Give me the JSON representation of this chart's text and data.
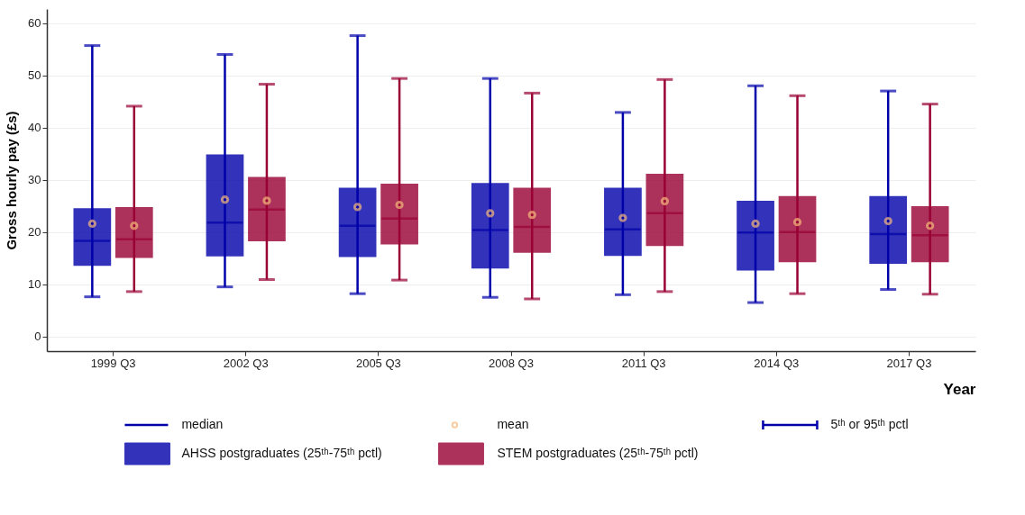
{
  "chart_data": {
    "type": "box",
    "xlabel": "Year",
    "ylabel": "Gross hourly pay (£s)",
    "categories": [
      "1999 Q3",
      "2002 Q3",
      "2005 Q3",
      "2008 Q3",
      "2011 Q3",
      "2014 Q3",
      "2017 Q3"
    ],
    "ylim": [
      -2.8,
      62.7
    ],
    "yticks": [
      0,
      10,
      20,
      30,
      40,
      50,
      60
    ],
    "grid": "y",
    "legend": "bottom",
    "annotations": [
      "median",
      "mean",
      "5ᵗʰ or 95ᵗʰ pctl"
    ],
    "series": [
      {
        "name": "AHSS postgraduates (25ᵗʰ-75ᵗʰ pctl)",
        "color": "#0000aa",
        "boxes": [
          {
            "low": 7.6,
            "q1": 13.7,
            "median": 18.3,
            "q3": 24.4,
            "high": 55.7,
            "mean": 21.6
          },
          {
            "low": 9.5,
            "q1": 15.5,
            "median": 21.8,
            "q3": 34.7,
            "high": 54.0,
            "mean": 26.2
          },
          {
            "low": 8.2,
            "q1": 15.4,
            "median": 21.2,
            "q3": 28.3,
            "high": 57.6,
            "mean": 24.8
          },
          {
            "low": 7.5,
            "q1": 13.2,
            "median": 20.4,
            "q3": 29.2,
            "high": 49.4,
            "mean": 23.6
          },
          {
            "low": 8.0,
            "q1": 15.6,
            "median": 20.5,
            "q3": 28.3,
            "high": 42.9,
            "mean": 22.7
          },
          {
            "low": 6.5,
            "q1": 12.8,
            "median": 19.9,
            "q3": 25.8,
            "high": 48.0,
            "mean": 21.6
          },
          {
            "low": 9.0,
            "q1": 14.1,
            "median": 19.6,
            "q3": 26.7,
            "high": 47.0,
            "mean": 22.1
          }
        ]
      },
      {
        "name": "STEM postgraduates (25ᵗʰ-75ᵗʰ pctl)",
        "color": "#990033",
        "boxes": [
          {
            "low": 8.6,
            "q1": 15.2,
            "median": 18.6,
            "q3": 24.6,
            "high": 44.1,
            "mean": 21.2
          },
          {
            "low": 10.9,
            "q1": 18.4,
            "median": 24.3,
            "q3": 30.4,
            "high": 48.3,
            "mean": 26.0
          },
          {
            "low": 10.8,
            "q1": 17.8,
            "median": 22.6,
            "q3": 29.1,
            "high": 49.4,
            "mean": 25.2
          },
          {
            "low": 7.2,
            "q1": 16.2,
            "median": 21.0,
            "q3": 28.3,
            "high": 46.6,
            "mean": 23.3
          },
          {
            "low": 8.6,
            "q1": 17.5,
            "median": 23.6,
            "q3": 31.0,
            "high": 49.2,
            "mean": 25.9
          },
          {
            "low": 8.2,
            "q1": 14.4,
            "median": 20.0,
            "q3": 26.7,
            "high": 46.1,
            "mean": 21.9
          },
          {
            "low": 8.1,
            "q1": 14.4,
            "median": 19.4,
            "q3": 24.8,
            "high": 44.5,
            "mean": 21.2
          }
        ]
      }
    ]
  }
}
